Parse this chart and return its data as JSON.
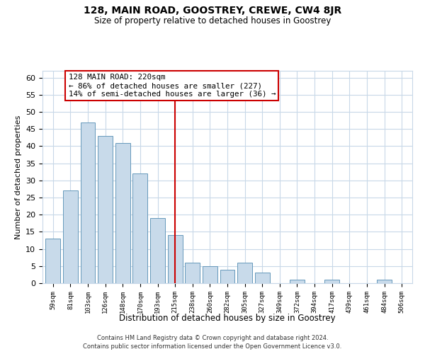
{
  "title": "128, MAIN ROAD, GOOSTREY, CREWE, CW4 8JR",
  "subtitle": "Size of property relative to detached houses in Goostrey",
  "xlabel": "Distribution of detached houses by size in Goostrey",
  "ylabel": "Number of detached properties",
  "categories": [
    "59sqm",
    "81sqm",
    "103sqm",
    "126sqm",
    "148sqm",
    "170sqm",
    "193sqm",
    "215sqm",
    "238sqm",
    "260sqm",
    "282sqm",
    "305sqm",
    "327sqm",
    "349sqm",
    "372sqm",
    "394sqm",
    "417sqm",
    "439sqm",
    "461sqm",
    "484sqm",
    "506sqm"
  ],
  "values": [
    13,
    27,
    47,
    43,
    41,
    32,
    19,
    14,
    6,
    5,
    4,
    6,
    3,
    0,
    1,
    0,
    1,
    0,
    0,
    1,
    0
  ],
  "bar_color": "#c8daea",
  "bar_edge_color": "#6699bb",
  "highlight_index": 7,
  "highlight_line_color": "#cc0000",
  "ylim": [
    0,
    62
  ],
  "yticks": [
    0,
    5,
    10,
    15,
    20,
    25,
    30,
    35,
    40,
    45,
    50,
    55,
    60
  ],
  "annotation_title": "128 MAIN ROAD: 220sqm",
  "annotation_line1": "← 86% of detached houses are smaller (227)",
  "annotation_line2": "14% of semi-detached houses are larger (36) →",
  "annotation_box_color": "#ffffff",
  "annotation_box_edge": "#cc0000",
  "footer_line1": "Contains HM Land Registry data © Crown copyright and database right 2024.",
  "footer_line2": "Contains public sector information licensed under the Open Government Licence v3.0.",
  "background_color": "#ffffff",
  "grid_color": "#c8d8e8"
}
